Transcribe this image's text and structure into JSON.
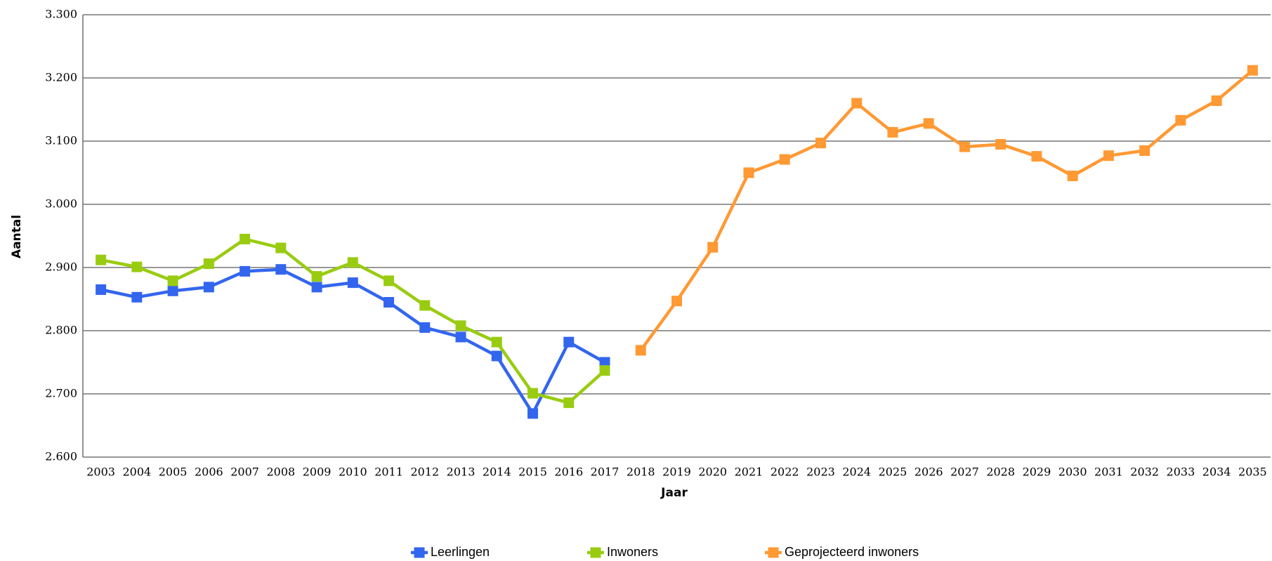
{
  "chart_data": {
    "type": "line",
    "x_label": "Jaar",
    "y_label": "Aantal",
    "categories": [
      "2003",
      "2004",
      "2005",
      "2006",
      "2007",
      "2008",
      "2009",
      "2010",
      "2011",
      "2012",
      "2013",
      "2014",
      "2015",
      "2016",
      "2017",
      "2018",
      "2019",
      "2020",
      "2021",
      "2022",
      "2023",
      "2024",
      "2025",
      "2026",
      "2027",
      "2028",
      "2029",
      "2030",
      "2031",
      "2032",
      "2033",
      "2034",
      "2035"
    ],
    "series": [
      {
        "name": "Leerlingen",
        "color": "#3366ee",
        "values": [
          2865,
          2853,
          2863,
          2869,
          2894,
          2897,
          2869,
          2876,
          2845,
          2805,
          2790,
          2760,
          2669,
          2782,
          2750,
          null,
          null,
          null,
          null,
          null,
          null,
          null,
          null,
          null,
          null,
          null,
          null,
          null,
          null,
          null,
          null,
          null,
          null
        ]
      },
      {
        "name": "Inwoners",
        "color": "#99cc11",
        "values": [
          2912,
          2901,
          2879,
          2906,
          2945,
          2931,
          2886,
          2908,
          2879,
          2840,
          2808,
          2782,
          2701,
          2686,
          2737,
          null,
          null,
          null,
          null,
          null,
          null,
          null,
          null,
          null,
          null,
          null,
          null,
          null,
          null,
          null,
          null,
          null,
          null
        ]
      },
      {
        "name": "Geprojecteerd inwoners",
        "color": "#ff9933",
        "values": [
          null,
          null,
          null,
          null,
          null,
          null,
          null,
          null,
          null,
          null,
          null,
          null,
          null,
          null,
          null,
          2769,
          2847,
          2932,
          3050,
          3071,
          3097,
          3160,
          3114,
          3128,
          3091,
          3095,
          3076,
          3045,
          3077,
          3085,
          3133,
          3164,
          3212
        ]
      }
    ],
    "ylim": [
      2600,
      3300
    ],
    "yticks": [
      {
        "value": 2600,
        "label": "2.600"
      },
      {
        "value": 2700,
        "label": "2.700"
      },
      {
        "value": 2800,
        "label": "2.800"
      },
      {
        "value": 2900,
        "label": "2.900"
      },
      {
        "value": 3000,
        "label": "3.000"
      },
      {
        "value": 3100,
        "label": "3.100"
      },
      {
        "value": 3200,
        "label": "3.200"
      },
      {
        "value": 3300,
        "label": "3.300"
      }
    ],
    "grid": true,
    "legend": "bottom"
  }
}
